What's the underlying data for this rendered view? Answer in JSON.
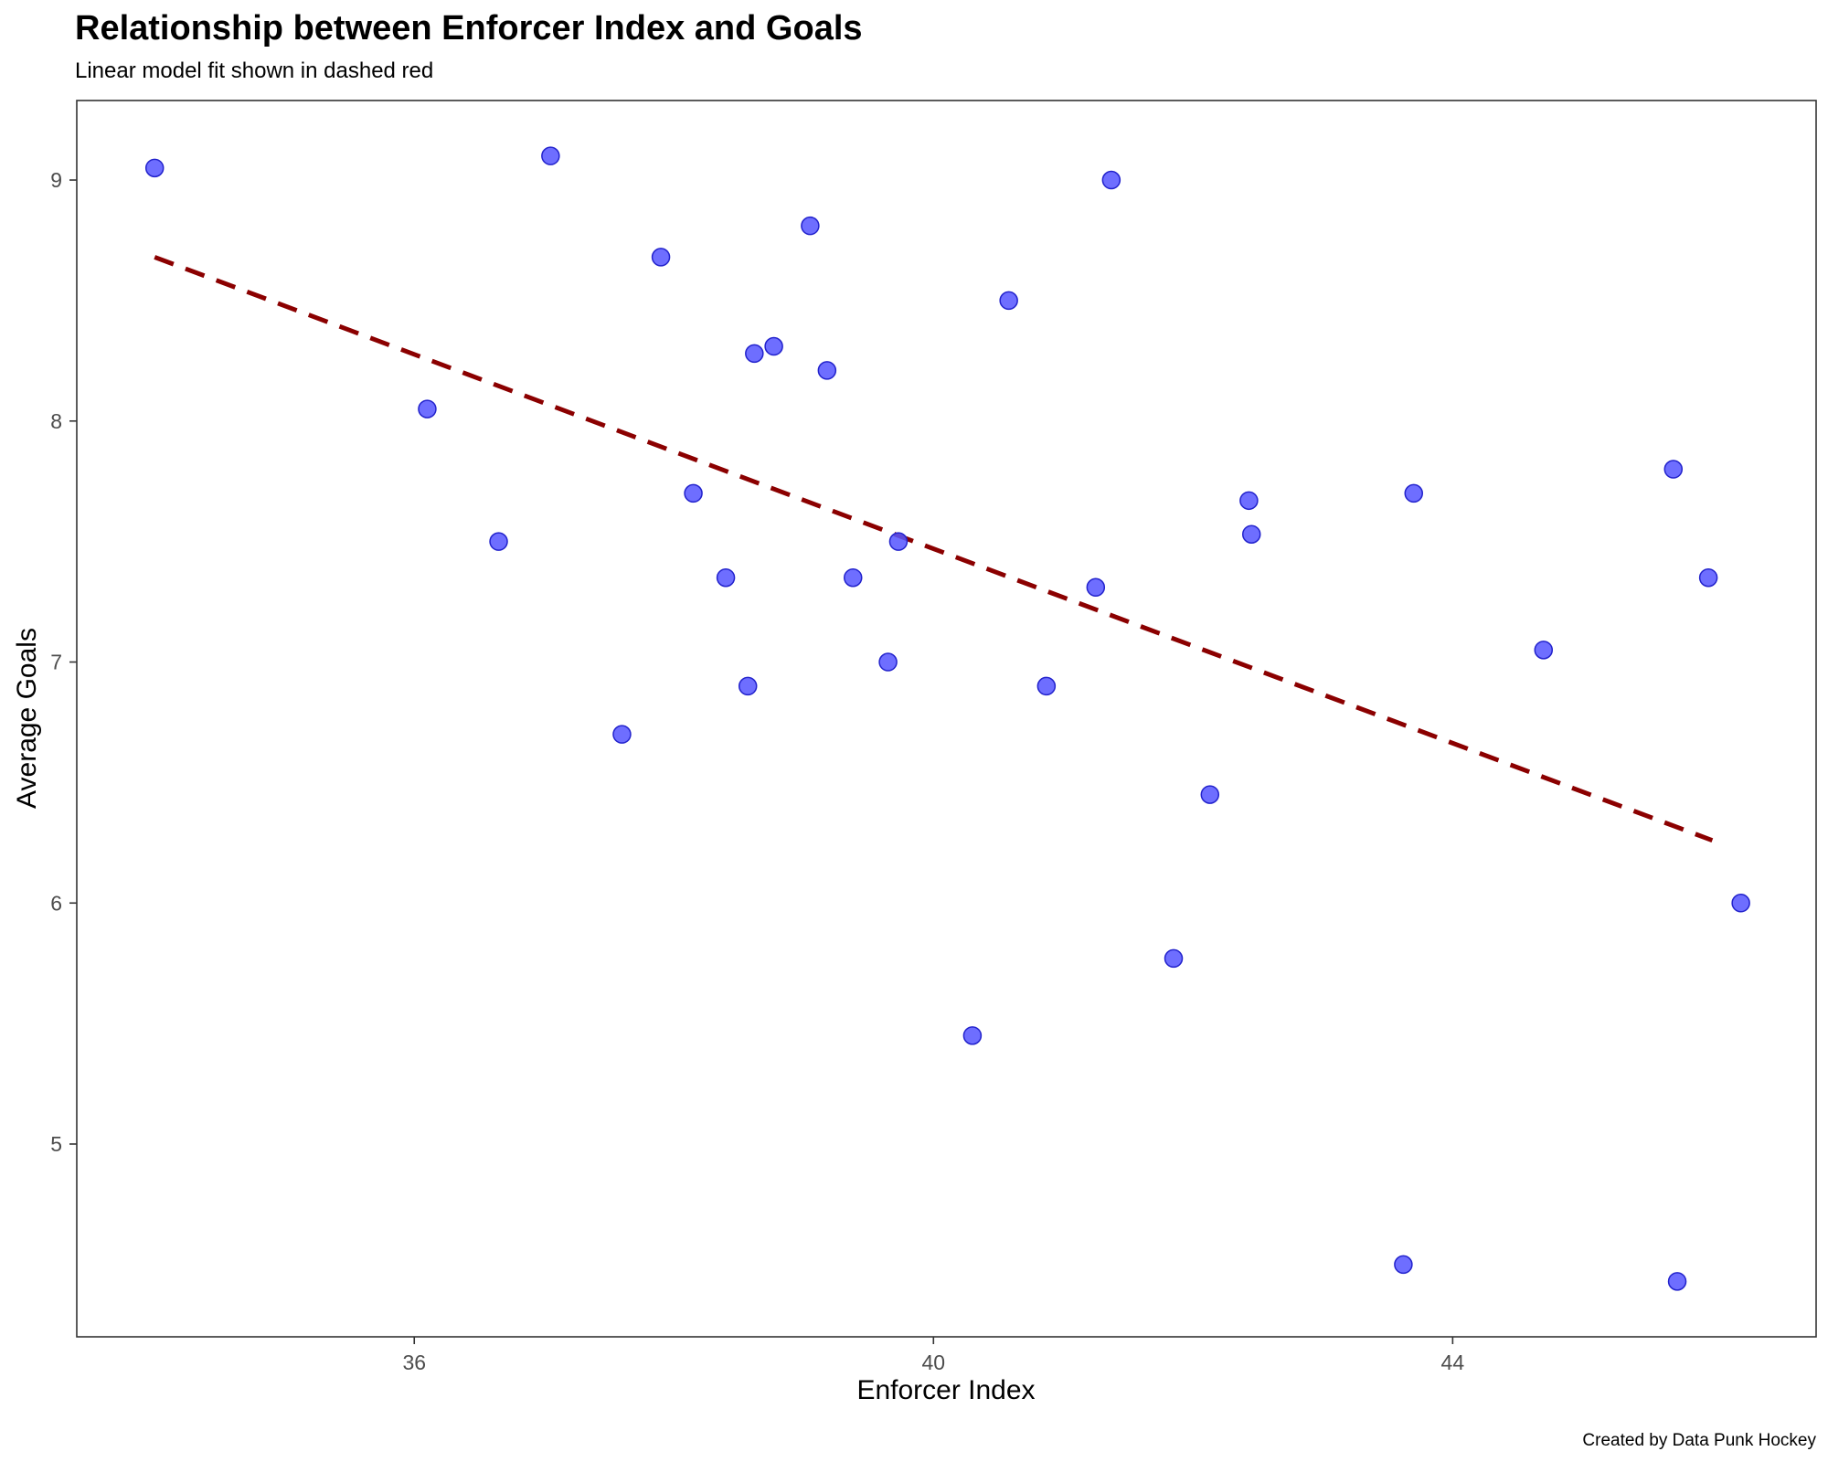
{
  "chart_data": {
    "type": "scatter",
    "title": "Relationship between Enforcer Index and Goals",
    "subtitle": "Linear model fit shown in dashed red",
    "xlabel": "Enforcer Index",
    "ylabel": "Average Goals",
    "caption": "Created by Data Punk Hockey",
    "xlim": [
      33.4,
      46.8
    ],
    "ylim": [
      4.2,
      9.33
    ],
    "x_ticks": [
      36,
      40,
      44
    ],
    "y_ticks": [
      5,
      6,
      7,
      8,
      9
    ],
    "grid": false,
    "point_color": "#5555ff",
    "point_edge_color": "#2222cc",
    "fit_color": "#8b0000",
    "points": [
      {
        "x": 34.0,
        "y": 9.05
      },
      {
        "x": 36.1,
        "y": 8.05
      },
      {
        "x": 36.65,
        "y": 7.5
      },
      {
        "x": 37.05,
        "y": 9.1
      },
      {
        "x": 37.6,
        "y": 6.7
      },
      {
        "x": 37.9,
        "y": 8.68
      },
      {
        "x": 38.15,
        "y": 7.7
      },
      {
        "x": 38.4,
        "y": 7.35
      },
      {
        "x": 38.57,
        "y": 6.9
      },
      {
        "x": 38.62,
        "y": 8.28
      },
      {
        "x": 38.77,
        "y": 8.31
      },
      {
        "x": 39.05,
        "y": 8.81
      },
      {
        "x": 39.18,
        "y": 8.21
      },
      {
        "x": 39.38,
        "y": 7.35
      },
      {
        "x": 39.65,
        "y": 7.0
      },
      {
        "x": 39.73,
        "y": 7.5
      },
      {
        "x": 40.3,
        "y": 5.45
      },
      {
        "x": 40.58,
        "y": 8.5
      },
      {
        "x": 40.87,
        "y": 6.9
      },
      {
        "x": 41.25,
        "y": 7.31
      },
      {
        "x": 41.37,
        "y": 9.0
      },
      {
        "x": 41.85,
        "y": 5.77
      },
      {
        "x": 42.13,
        "y": 6.45
      },
      {
        "x": 42.43,
        "y": 7.67
      },
      {
        "x": 42.45,
        "y": 7.53
      },
      {
        "x": 43.62,
        "y": 4.5
      },
      {
        "x": 43.7,
        "y": 7.7
      },
      {
        "x": 44.7,
        "y": 7.05
      },
      {
        "x": 45.7,
        "y": 7.8
      },
      {
        "x": 45.73,
        "y": 4.43
      },
      {
        "x": 45.97,
        "y": 7.35
      },
      {
        "x": 46.22,
        "y": 6.0
      }
    ],
    "fit_line": {
      "x": [
        34.0,
        46.0
      ],
      "y": [
        8.68,
        6.26
      ]
    }
  }
}
